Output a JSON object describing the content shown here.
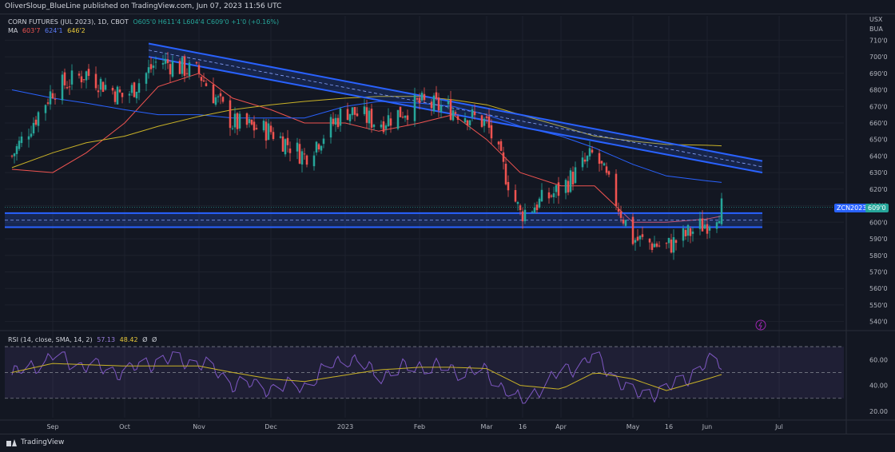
{
  "header": {
    "publisher": "OliverSloup_BlueLine published on TradingView.com, Jun 07, 2023 11:56 UTC"
  },
  "legend": {
    "title": "CORN FUTURES (JUL 2023), 1D, CBOT",
    "ohlc": "O605'0 H611'4 L604'4 C609'0 +1'0 (+0.16%)",
    "ma_label": "MA",
    "ma_values": [
      "603'7",
      "624'1",
      "646'2"
    ],
    "rsi_label": "RSI (14, close, SMA, 14, 2)",
    "rsi_values": [
      "57.13",
      "48.42",
      "Ø",
      "Ø"
    ]
  },
  "price_axis": {
    "currency": "USX",
    "unit": "BUA",
    "ticks": [
      "710'0",
      "700'0",
      "690'0",
      "680'0",
      "670'0",
      "660'0",
      "650'0",
      "640'0",
      "630'0",
      "620'0",
      "610'0",
      "600'0",
      "590'0",
      "580'0",
      "570'0",
      "560'0",
      "550'0",
      "540'0"
    ],
    "symbol_tag": "ZCN2023",
    "last_price": "609'0"
  },
  "rsi_axis": {
    "ticks": [
      "60.00",
      "40.00",
      "20.00"
    ]
  },
  "time_axis": {
    "labels": [
      "Sep",
      "Oct",
      "Nov",
      "Dec",
      "2023",
      "Feb",
      "Mar",
      "16",
      "Apr",
      "May",
      "16",
      "Jun",
      "Jul"
    ]
  },
  "footer": {
    "brand": "TradingView"
  },
  "colors": {
    "background": "#131722",
    "up": "#26a69a",
    "down": "#ef5350",
    "ma_fast": "#ef5350",
    "ma_mid": "#2962ff",
    "ma_slow": "#c9b227",
    "channel": "#2962ff",
    "rsi": "#7e57c2",
    "rsi_ma": "#c9b227"
  },
  "chart_data": [
    {
      "type": "candlestick",
      "title": "CORN FUTURES (JUL 2023), 1D, CBOT",
      "ylim": [
        535,
        715
      ],
      "x": [
        "2022-08-15",
        "2022-09-01",
        "2022-09-15",
        "2022-10-01",
        "2022-10-15",
        "2022-11-01",
        "2022-11-15",
        "2022-12-01",
        "2022-12-15",
        "2023-01-01",
        "2023-01-15",
        "2023-02-01",
        "2023-02-15",
        "2023-03-01",
        "2023-03-15",
        "2023-04-01",
        "2023-04-15",
        "2023-05-01",
        "2023-05-15",
        "2023-06-01",
        "2023-06-07"
      ],
      "series": [
        {
          "name": "close",
          "values": [
            640,
            680,
            690,
            675,
            698,
            690,
            660,
            655,
            640,
            668,
            660,
            672,
            668,
            660,
            605,
            620,
            642,
            590,
            585,
            600,
            609
          ]
        },
        {
          "name": "MA 603'7",
          "values": [
            632,
            630,
            642,
            660,
            682,
            690,
            675,
            668,
            660,
            660,
            655,
            660,
            665,
            650,
            630,
            622,
            622,
            600,
            600,
            602,
            603.7
          ]
        },
        {
          "name": "MA 624'1",
          "values": [
            680,
            675,
            672,
            668,
            665,
            665,
            663,
            663,
            663,
            670,
            673,
            672,
            670,
            665,
            658,
            652,
            645,
            635,
            628,
            625,
            624.1
          ]
        },
        {
          "name": "MA 646'2",
          "values": [
            633,
            642,
            648,
            652,
            658,
            664,
            668,
            671,
            673,
            675,
            676,
            676,
            674,
            671,
            665,
            658,
            652,
            649,
            647,
            646.5,
            646.2
          ]
        }
      ],
      "price_tags": {
        "ZCN2023": 609
      }
    },
    {
      "type": "line",
      "title": "RSI (14, close, SMA, 14, 2)",
      "ylim": [
        15,
        75
      ],
      "x": [
        "2022-08-15",
        "2022-09-01",
        "2022-09-15",
        "2022-10-01",
        "2022-10-15",
        "2022-11-01",
        "2022-11-15",
        "2022-12-01",
        "2022-12-15",
        "2023-01-01",
        "2023-01-15",
        "2023-02-01",
        "2023-02-15",
        "2023-03-01",
        "2023-03-15",
        "2023-04-01",
        "2023-04-15",
        "2023-05-01",
        "2023-05-15",
        "2023-06-01",
        "2023-06-07"
      ],
      "series": [
        {
          "name": "RSI 57.13",
          "values": [
            48,
            62,
            55,
            50,
            60,
            58,
            42,
            38,
            40,
            63,
            48,
            56,
            52,
            50,
            27,
            50,
            62,
            33,
            36,
            57,
            57.13
          ]
        },
        {
          "name": "RSI MA 48.42",
          "values": [
            50,
            57,
            56,
            55,
            55,
            55,
            50,
            45,
            43,
            48,
            52,
            54,
            54,
            53,
            40,
            37,
            50,
            45,
            36,
            45,
            48.42
          ]
        }
      ],
      "levels": [
        70,
        50,
        30
      ]
    }
  ]
}
